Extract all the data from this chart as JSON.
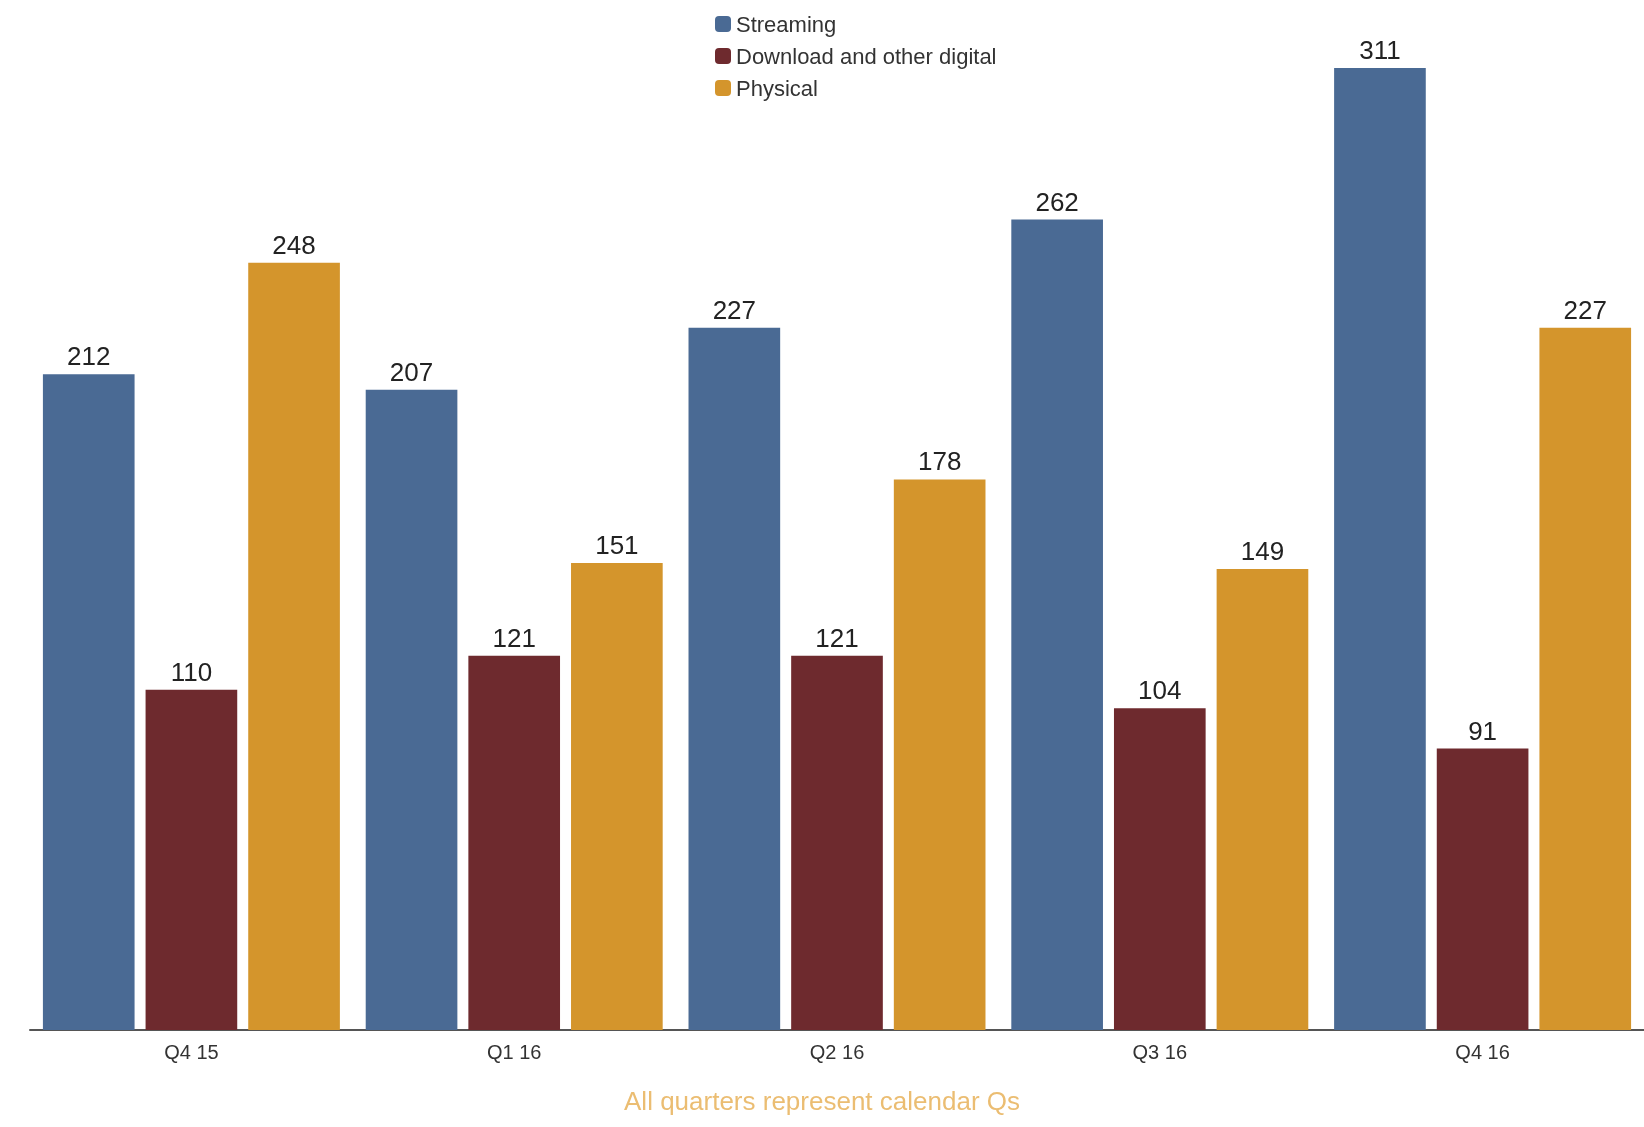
{
  "chart_data": {
    "type": "bar",
    "categories": [
      "Q4 15",
      "Q1 16",
      "Q2 16",
      "Q3 16",
      "Q4 16"
    ],
    "series": [
      {
        "name": "Streaming",
        "color": "#4a6a94",
        "values": [
          212,
          207,
          227,
          262,
          311
        ]
      },
      {
        "name": "Download and other digital",
        "color": "#6e2a2e",
        "values": [
          110,
          121,
          121,
          104,
          91
        ]
      },
      {
        "name": "Physical",
        "color": "#d4952c",
        "values": [
          248,
          151,
          178,
          149,
          227
        ]
      }
    ],
    "data_labels": true,
    "legend": "top",
    "annotations": [
      "All quarters represent calendar Qs"
    ]
  }
}
